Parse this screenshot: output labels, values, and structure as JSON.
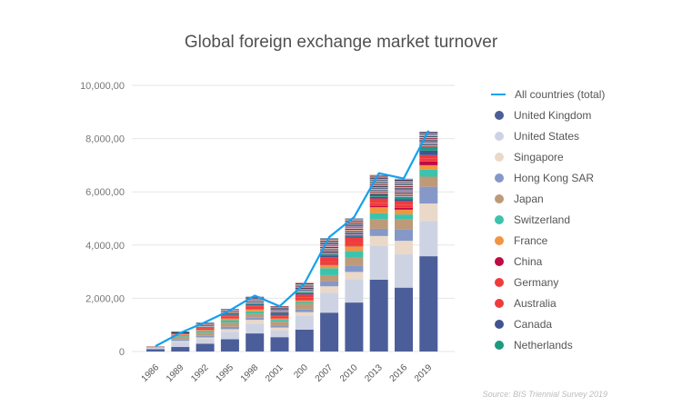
{
  "chart_data": {
    "type": "bar",
    "stacked": true,
    "title": "Global foreign exchange market turnover",
    "source": "Source: BIS Triennial Survey 2019",
    "xlabel": "",
    "ylabel": "",
    "ylim": [
      0,
      10000
    ],
    "yticks": [
      "0",
      "2,000,00",
      "4,000,00",
      "6,000,00",
      "8,000,00",
      "10,000,00"
    ],
    "ytick_values": [
      0,
      2000,
      4000,
      6000,
      8000,
      10000
    ],
    "categories": [
      "1986",
      "1989",
      "1992",
      "1995",
      "1998",
      "2001",
      "200",
      "2007",
      "2010",
      "2013",
      "2016",
      "2019"
    ],
    "legend_position": "right",
    "line": {
      "name": "All countries (total)",
      "color": "#14a1f0",
      "values": [
        200,
        700,
        1100,
        1550,
        2100,
        1700,
        2550,
        4300,
        5050,
        6700,
        6500,
        8300
      ]
    },
    "series": [
      {
        "name": "United Kingdom",
        "color": "#4c5e99",
        "values": [
          90,
          170,
          290,
          460,
          680,
          540,
          820,
          1460,
          1840,
          2700,
          2400,
          3580
        ]
      },
      {
        "name": "United States",
        "color": "#cdd3e3",
        "values": [
          60,
          200,
          170,
          280,
          370,
          260,
          510,
          740,
          880,
          1260,
          1250,
          1320
        ]
      },
      {
        "name": "Singapore",
        "color": "#ead9c8",
        "values": [
          0,
          30,
          70,
          100,
          140,
          100,
          150,
          250,
          270,
          380,
          510,
          660
        ]
      },
      {
        "name": "Hong Kong SAR",
        "color": "#8598c8",
        "values": [
          0,
          50,
          60,
          90,
          80,
          70,
          100,
          180,
          240,
          270,
          440,
          630
        ]
      },
      {
        "name": "Japan",
        "color": "#bd9a78",
        "values": [
          40,
          110,
          120,
          160,
          140,
          150,
          200,
          240,
          300,
          370,
          370,
          380
        ]
      },
      {
        "name": "Switzerland",
        "color": "#3cc3ad",
        "values": [
          0,
          60,
          70,
          90,
          100,
          70,
          80,
          260,
          250,
          220,
          180,
          260
        ]
      },
      {
        "name": "France",
        "color": "#f29440",
        "values": [
          0,
          20,
          30,
          60,
          70,
          50,
          60,
          120,
          170,
          220,
          180,
          170
        ]
      },
      {
        "name": "China",
        "color": "#bf0a43",
        "values": [
          0,
          0,
          0,
          0,
          0,
          0,
          0,
          10,
          20,
          40,
          70,
          140
        ]
      },
      {
        "name": "Germany",
        "color": "#f03c3c",
        "values": [
          0,
          10,
          50,
          80,
          100,
          70,
          120,
          100,
          110,
          110,
          120,
          120
        ]
      },
      {
        "name": "Australia",
        "color": "#ef3b3e",
        "values": [
          0,
          30,
          30,
          40,
          50,
          50,
          100,
          180,
          190,
          180,
          120,
          120
        ]
      },
      {
        "name": "Canada",
        "color": "#42548f",
        "values": [
          0,
          20,
          20,
          30,
          40,
          40,
          50,
          60,
          60,
          60,
          90,
          170
        ]
      },
      {
        "name": "Netherlands",
        "color": "#1b9a80",
        "values": [
          0,
          0,
          20,
          30,
          40,
          30,
          50,
          40,
          50,
          60,
          80,
          120
        ]
      }
    ],
    "other_values": [
      10,
      40,
      150,
      180,
      260,
      270,
      360,
      610,
      620,
      780,
      690,
      580
    ],
    "other_colors": [
      "#c792b6",
      "#2b2b3f",
      "#a7b7c9",
      "#8c2b3a",
      "#d9c2b0",
      "#1f4e6b",
      "#e7a9b5",
      "#5a6b8a"
    ]
  }
}
